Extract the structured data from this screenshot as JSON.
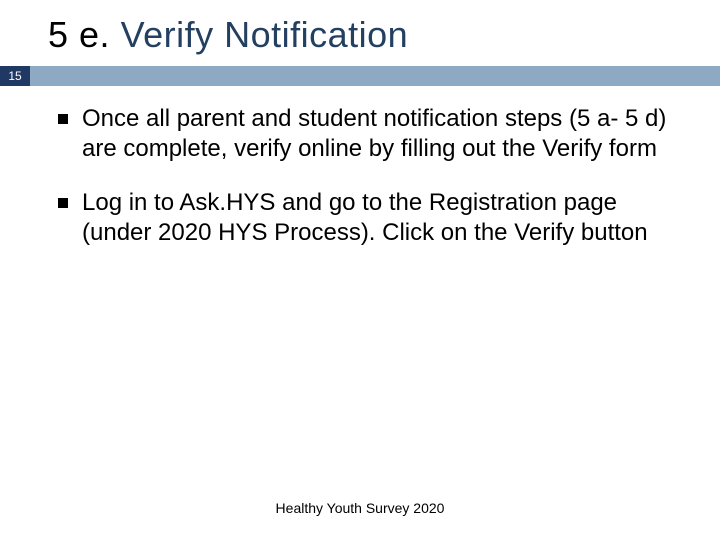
{
  "slide": {
    "title_prefix": "5 e. ",
    "title_main": "Verify Notification",
    "slide_number": "15",
    "bullets": [
      "Once all parent and student notification steps (5 a- 5 d) are complete, verify online by filling out the Verify form",
      "Log in to Ask.HYS and go to the Registration page (under 2020 HYS Process). Click on the Verify button"
    ],
    "footer": "Healthy Youth Survey 2020"
  },
  "style": {
    "title_prefix_color": "#000000",
    "title_main_color": "#244061",
    "title_fontsize_pt": 27,
    "number_box_bg": "#1f3864",
    "number_box_text_color": "#ffffff",
    "rule_color": "#8da9c4",
    "bullet_marker_color": "#000000",
    "body_fontsize_pt": 18,
    "body_text_color": "#000000",
    "footer_fontsize_pt": 10,
    "background_color": "#ffffff",
    "font_family": "Arial"
  }
}
